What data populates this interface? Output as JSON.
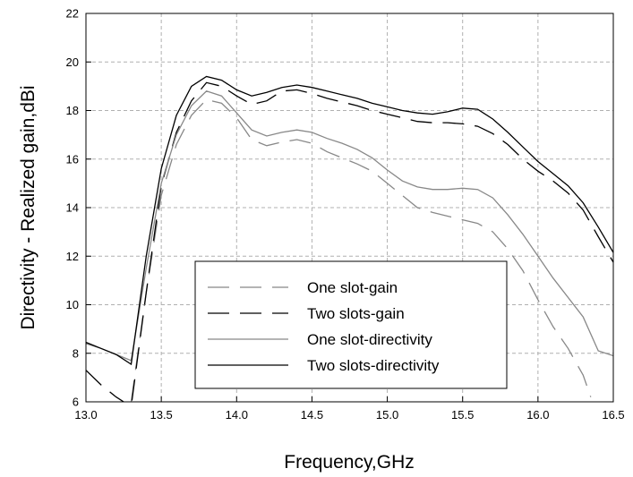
{
  "chart_data": {
    "type": "line",
    "title": "",
    "xlabel": "Frequency,GHz",
    "ylabel": "Directivity - Realized gain,dBi",
    "xlim": [
      13.0,
      16.5
    ],
    "ylim": [
      6,
      22
    ],
    "xticks": [
      "13.0",
      "13.5",
      "14.0",
      "14.5",
      "15.0",
      "15.5",
      "16.0",
      "16.5"
    ],
    "yticks": [
      "6",
      "8",
      "10",
      "12",
      "14",
      "16",
      "18",
      "20",
      "22"
    ],
    "grid": true,
    "legend_position": "bottom-center",
    "series": [
      {
        "name": "One slot-gain",
        "color": "#888888",
        "dash": "long-dash",
        "points": [
          [
            13.3,
            6.0
          ],
          [
            13.4,
            10.5
          ],
          [
            13.5,
            14.5
          ],
          [
            13.6,
            16.6
          ],
          [
            13.7,
            17.8
          ],
          [
            13.8,
            18.45
          ],
          [
            13.9,
            18.3
          ],
          [
            14.0,
            17.7
          ],
          [
            14.1,
            16.8
          ],
          [
            14.2,
            16.55
          ],
          [
            14.3,
            16.7
          ],
          [
            14.4,
            16.8
          ],
          [
            14.5,
            16.65
          ],
          [
            14.6,
            16.3
          ],
          [
            14.7,
            16.05
          ],
          [
            14.8,
            15.8
          ],
          [
            14.9,
            15.5
          ],
          [
            15.0,
            15.0
          ],
          [
            15.1,
            14.5
          ],
          [
            15.2,
            14.0
          ],
          [
            15.3,
            13.8
          ],
          [
            15.4,
            13.65
          ],
          [
            15.5,
            13.5
          ],
          [
            15.6,
            13.35
          ],
          [
            15.7,
            13.0
          ],
          [
            15.8,
            12.3
          ],
          [
            15.9,
            11.4
          ],
          [
            16.0,
            10.2
          ],
          [
            16.1,
            9.1
          ],
          [
            16.2,
            8.2
          ],
          [
            16.3,
            7.1
          ],
          [
            16.35,
            6.2
          ]
        ]
      },
      {
        "name": "Two slots-gain",
        "color": "#000000",
        "dash": "long-dash",
        "points": [
          [
            13.0,
            7.3
          ],
          [
            13.1,
            6.7
          ],
          [
            13.2,
            6.2
          ],
          [
            13.3,
            5.8
          ],
          [
            13.4,
            10.5
          ],
          [
            13.5,
            14.9
          ],
          [
            13.6,
            17.1
          ],
          [
            13.7,
            18.4
          ],
          [
            13.8,
            19.15
          ],
          [
            13.9,
            19.0
          ],
          [
            14.0,
            18.6
          ],
          [
            14.1,
            18.25
          ],
          [
            14.2,
            18.4
          ],
          [
            14.3,
            18.8
          ],
          [
            14.4,
            18.85
          ],
          [
            14.5,
            18.7
          ],
          [
            14.6,
            18.5
          ],
          [
            14.7,
            18.35
          ],
          [
            14.8,
            18.2
          ],
          [
            14.9,
            18.0
          ],
          [
            15.0,
            17.85
          ],
          [
            15.1,
            17.7
          ],
          [
            15.2,
            17.55
          ],
          [
            15.3,
            17.5
          ],
          [
            15.4,
            17.5
          ],
          [
            15.5,
            17.45
          ],
          [
            15.6,
            17.35
          ],
          [
            15.7,
            17.05
          ],
          [
            15.8,
            16.6
          ],
          [
            15.9,
            16.0
          ],
          [
            16.0,
            15.5
          ],
          [
            16.1,
            15.1
          ],
          [
            16.2,
            14.6
          ],
          [
            16.3,
            13.9
          ],
          [
            16.4,
            12.8
          ],
          [
            16.5,
            11.75
          ]
        ]
      },
      {
        "name": "One slot-directivity",
        "color": "#888888",
        "dash": "solid",
        "points": [
          [
            13.0,
            8.4
          ],
          [
            13.1,
            8.2
          ],
          [
            13.2,
            7.95
          ],
          [
            13.3,
            7.7
          ],
          [
            13.4,
            11.5
          ],
          [
            13.5,
            15.0
          ],
          [
            13.6,
            17.0
          ],
          [
            13.7,
            18.2
          ],
          [
            13.8,
            18.8
          ],
          [
            13.9,
            18.6
          ],
          [
            14.0,
            17.9
          ],
          [
            14.1,
            17.2
          ],
          [
            14.2,
            16.95
          ],
          [
            14.3,
            17.1
          ],
          [
            14.4,
            17.2
          ],
          [
            14.5,
            17.1
          ],
          [
            14.6,
            16.85
          ],
          [
            14.7,
            16.65
          ],
          [
            14.8,
            16.4
          ],
          [
            14.9,
            16.05
          ],
          [
            15.0,
            15.55
          ],
          [
            15.1,
            15.1
          ],
          [
            15.2,
            14.85
          ],
          [
            15.3,
            14.75
          ],
          [
            15.4,
            14.75
          ],
          [
            15.5,
            14.8
          ],
          [
            15.6,
            14.75
          ],
          [
            15.7,
            14.4
          ],
          [
            15.8,
            13.7
          ],
          [
            15.9,
            12.9
          ],
          [
            16.0,
            12.0
          ],
          [
            16.1,
            11.1
          ],
          [
            16.2,
            10.3
          ],
          [
            16.3,
            9.5
          ],
          [
            16.4,
            8.1
          ],
          [
            16.5,
            7.9
          ]
        ]
      },
      {
        "name": "Two slots-directivity",
        "color": "#000000",
        "dash": "solid",
        "points": [
          [
            13.0,
            8.45
          ],
          [
            13.1,
            8.2
          ],
          [
            13.2,
            7.95
          ],
          [
            13.3,
            7.55
          ],
          [
            13.4,
            12.0
          ],
          [
            13.5,
            15.6
          ],
          [
            13.6,
            17.8
          ],
          [
            13.7,
            19.0
          ],
          [
            13.8,
            19.4
          ],
          [
            13.9,
            19.25
          ],
          [
            14.0,
            18.85
          ],
          [
            14.1,
            18.6
          ],
          [
            14.2,
            18.75
          ],
          [
            14.3,
            18.95
          ],
          [
            14.4,
            19.05
          ],
          [
            14.5,
            18.95
          ],
          [
            14.6,
            18.8
          ],
          [
            14.7,
            18.65
          ],
          [
            14.8,
            18.5
          ],
          [
            14.9,
            18.3
          ],
          [
            15.0,
            18.15
          ],
          [
            15.1,
            18.0
          ],
          [
            15.2,
            17.9
          ],
          [
            15.3,
            17.85
          ],
          [
            15.4,
            17.95
          ],
          [
            15.5,
            18.1
          ],
          [
            15.6,
            18.05
          ],
          [
            15.7,
            17.65
          ],
          [
            15.8,
            17.1
          ],
          [
            15.9,
            16.5
          ],
          [
            16.0,
            15.9
          ],
          [
            16.1,
            15.4
          ],
          [
            16.2,
            14.9
          ],
          [
            16.3,
            14.2
          ],
          [
            16.4,
            13.2
          ],
          [
            16.5,
            12.15
          ]
        ]
      }
    ]
  }
}
